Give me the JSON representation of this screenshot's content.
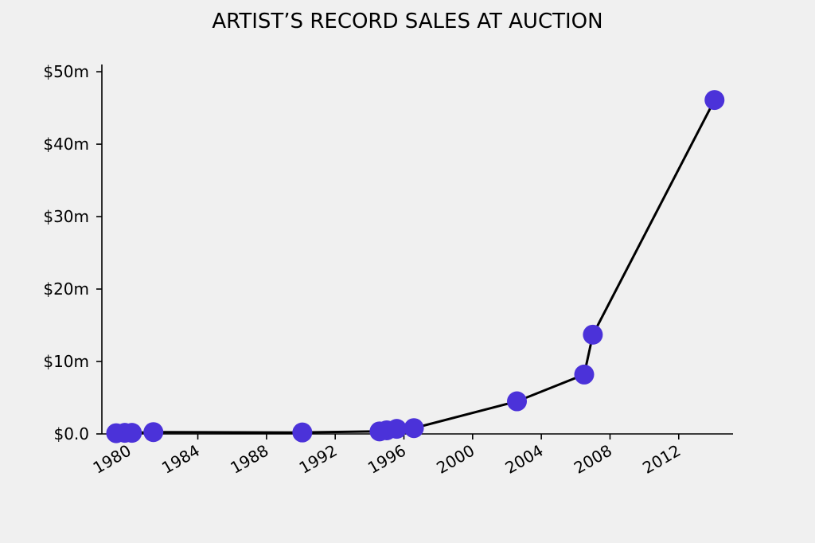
{
  "chart_data": {
    "type": "line",
    "title": "ARTIST’S RECORD SALES AT AUCTION",
    "xlabel": "",
    "ylabel": "",
    "x_axis_type": "date",
    "xlim": [
      "1978-06-01",
      "2015-03-01"
    ],
    "ylim": [
      0,
      51
    ],
    "x_ticks": [
      {
        "value": "1980-01-01",
        "label": "1980"
      },
      {
        "value": "1984-01-01",
        "label": "1984"
      },
      {
        "value": "1988-01-01",
        "label": "1988"
      },
      {
        "value": "1992-01-01",
        "label": "1992"
      },
      {
        "value": "1996-01-01",
        "label": "1996"
      },
      {
        "value": "2000-01-01",
        "label": "2000"
      },
      {
        "value": "2004-01-01",
        "label": "2004"
      },
      {
        "value": "2008-01-01",
        "label": "2008"
      },
      {
        "value": "2012-01-01",
        "label": "2012"
      }
    ],
    "y_ticks": [
      {
        "value": 0,
        "label": "$0.0"
      },
      {
        "value": 10,
        "label": "$10m"
      },
      {
        "value": 20,
        "label": "$20m"
      },
      {
        "value": 30,
        "label": "$30m"
      },
      {
        "value": 40,
        "label": "$40m"
      },
      {
        "value": 50,
        "label": "$50m"
      }
    ],
    "grid": false,
    "legend": "none",
    "colors": {
      "marker": "#4b32d9",
      "line": "#000000",
      "background": "#f0f0f0"
    },
    "series": [
      {
        "points": [
          {
            "x": "1979-04-01",
            "y": 0.1
          },
          {
            "x": "1979-10-01",
            "y": 0.15
          },
          {
            "x": "1980-03-01",
            "y": 0.15
          },
          {
            "x": "1981-06-01",
            "y": 0.25
          },
          {
            "x": "1990-02-01",
            "y": 0.2
          },
          {
            "x": "1994-08-01",
            "y": 0.35
          },
          {
            "x": "1995-01-01",
            "y": 0.5
          },
          {
            "x": "1995-08-01",
            "y": 0.7
          },
          {
            "x": "1996-08-01",
            "y": 0.8
          },
          {
            "x": "2002-08-01",
            "y": 4.5
          },
          {
            "x": "2006-07-01",
            "y": 8.2
          },
          {
            "x": "2007-01-01",
            "y": 13.7
          },
          {
            "x": "2014-02-01",
            "y": 46.1
          }
        ]
      }
    ]
  }
}
